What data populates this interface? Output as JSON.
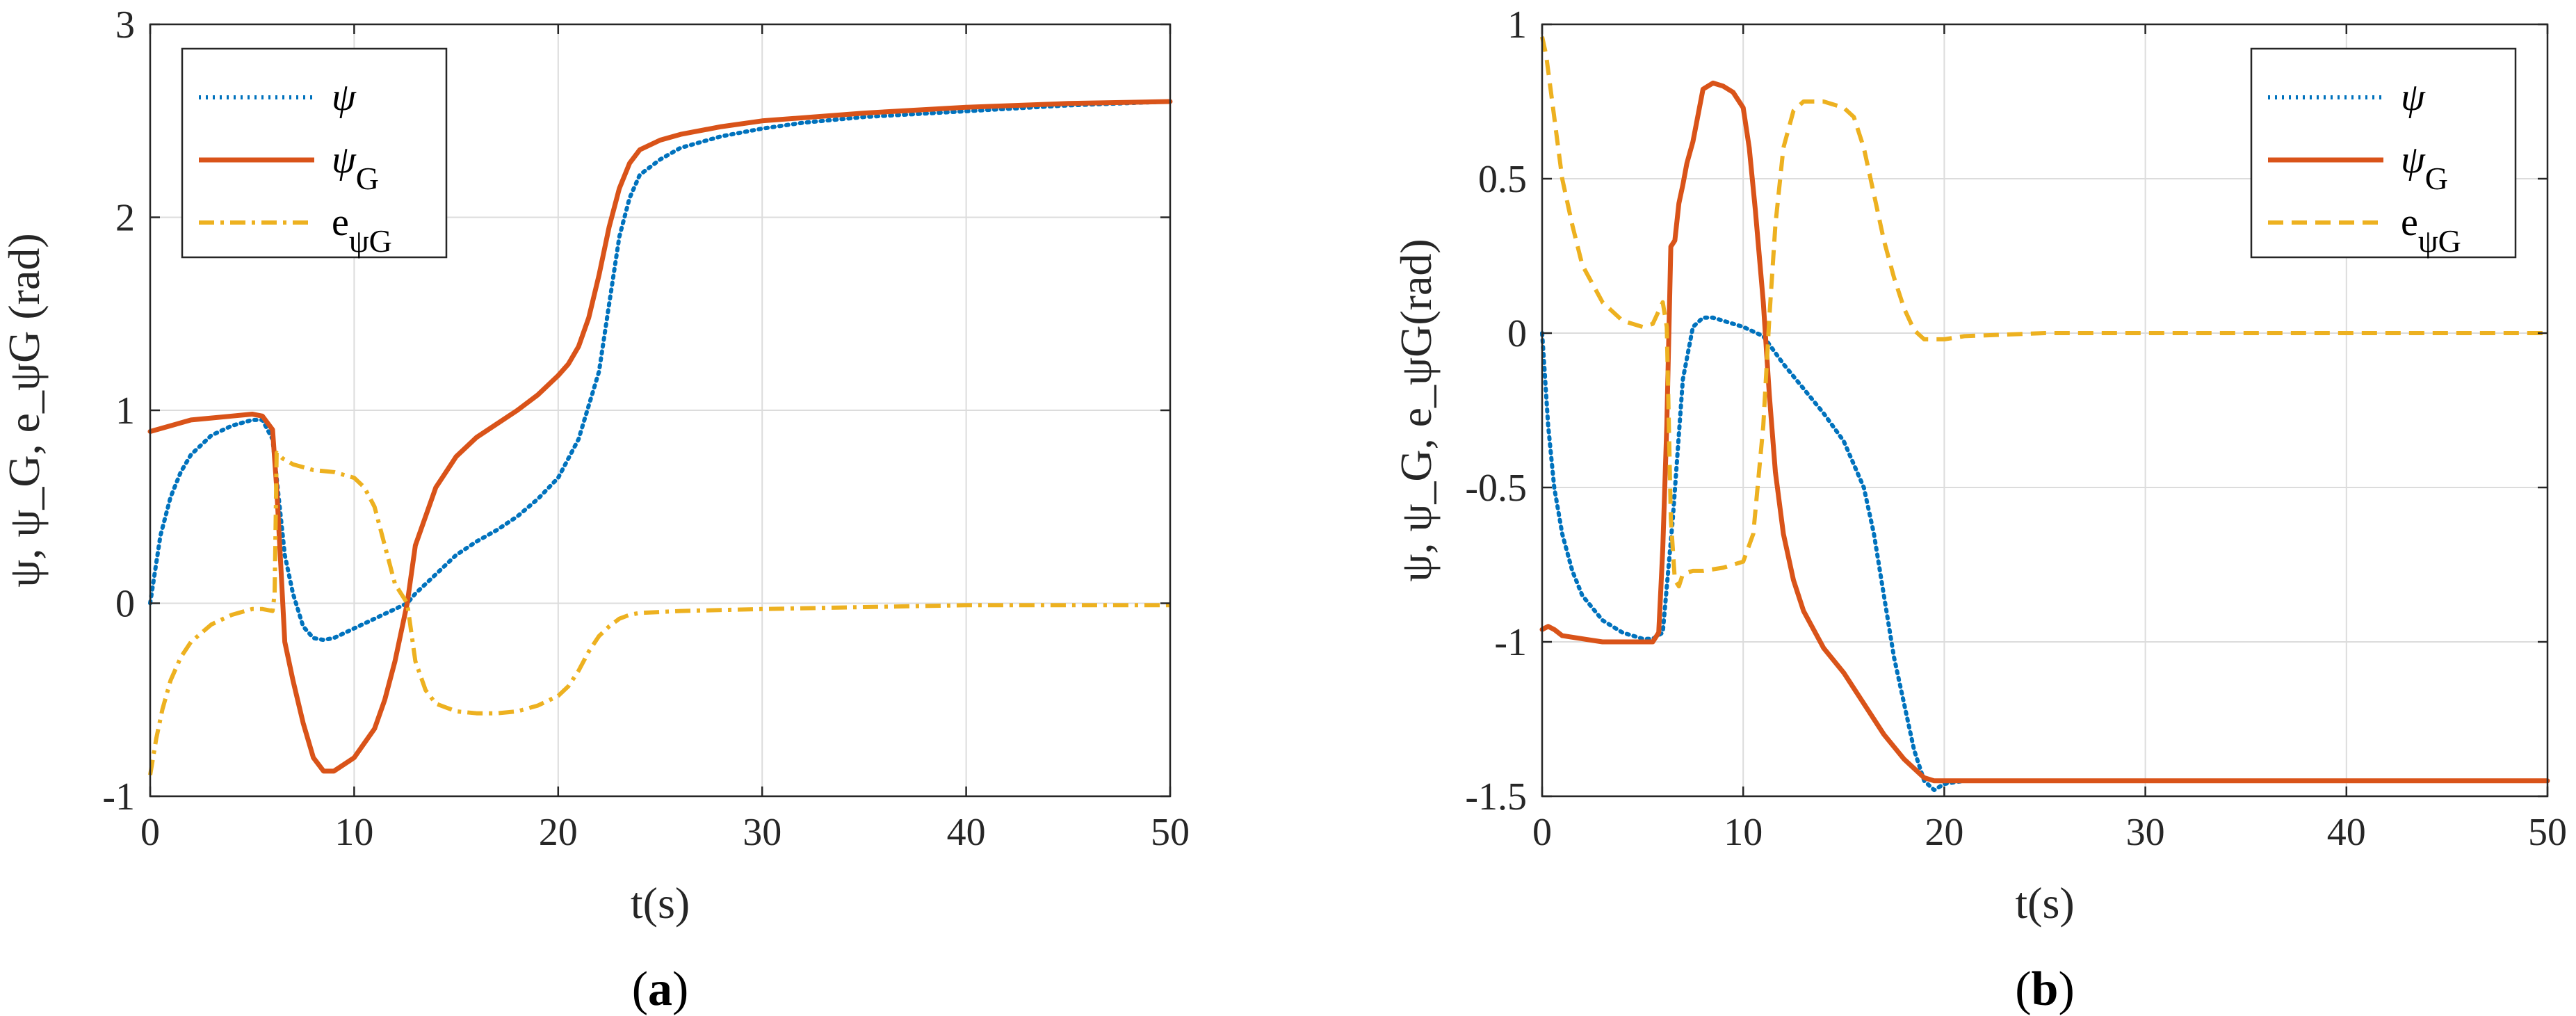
{
  "chart_data": [
    {
      "type": "line",
      "panel_label": "(a)",
      "xlabel": "t(s)",
      "ylabel": "ψ, ψ_G, e_ψG (rad)",
      "xlim": [
        0,
        50
      ],
      "ylim": [
        -1,
        3
      ],
      "xticks": [
        0,
        10,
        20,
        30,
        40,
        50
      ],
      "yticks": [
        -1,
        0,
        1,
        2,
        3
      ],
      "grid": true,
      "legend_position": "top-left",
      "series": [
        {
          "name": "ψ",
          "name_main": "ψ",
          "name_sub": "",
          "style": "dotted",
          "color": "#0072BD",
          "x": [
            0,
            0.5,
            1,
            1.5,
            2,
            3,
            4,
            5,
            5.5,
            6,
            6.3,
            6.6,
            7,
            7.5,
            8,
            8.5,
            9,
            10,
            11,
            12,
            12.6,
            13,
            14,
            15,
            16,
            17,
            18,
            19,
            20,
            21,
            22,
            22.5,
            23,
            23.5,
            24,
            25,
            26,
            28,
            30,
            32,
            35,
            40,
            45,
            50
          ],
          "y": [
            0,
            0.35,
            0.55,
            0.68,
            0.77,
            0.87,
            0.92,
            0.95,
            0.95,
            0.85,
            0.55,
            0.25,
            0.05,
            -0.12,
            -0.18,
            -0.19,
            -0.18,
            -0.13,
            -0.08,
            -0.03,
            0,
            0.05,
            0.15,
            0.25,
            0.32,
            0.38,
            0.45,
            0.54,
            0.65,
            0.85,
            1.2,
            1.55,
            1.9,
            2.1,
            2.22,
            2.3,
            2.36,
            2.42,
            2.46,
            2.49,
            2.52,
            2.55,
            2.58,
            2.6
          ]
        },
        {
          "name": "ψG",
          "name_main": "ψ",
          "name_sub": "G",
          "style": "solid",
          "color": "#D95319",
          "x": [
            0,
            1,
            2,
            3,
            4,
            5,
            5.5,
            6,
            6.2,
            6.4,
            6.6,
            7,
            7.5,
            8,
            8.5,
            9,
            10,
            11,
            11.5,
            12,
            12.6,
            13,
            14,
            15,
            16,
            17,
            18,
            19,
            20,
            20.5,
            21,
            21.5,
            22,
            22.5,
            23,
            23.5,
            24,
            25,
            26,
            28,
            30,
            35,
            40,
            45,
            50
          ],
          "y": [
            0.89,
            0.92,
            0.95,
            0.96,
            0.97,
            0.98,
            0.97,
            0.9,
            0.6,
            0.2,
            -0.2,
            -0.4,
            -0.62,
            -0.8,
            -0.87,
            -0.87,
            -0.8,
            -0.65,
            -0.5,
            -0.3,
            0,
            0.3,
            0.6,
            0.76,
            0.86,
            0.93,
            1.0,
            1.08,
            1.18,
            1.24,
            1.33,
            1.48,
            1.7,
            1.95,
            2.15,
            2.28,
            2.35,
            2.4,
            2.43,
            2.47,
            2.5,
            2.54,
            2.57,
            2.59,
            2.6
          ]
        },
        {
          "name": "eψG",
          "name_main": "e",
          "name_sub": "ψG",
          "style": "dashdot",
          "color": "#EDB120",
          "x": [
            0,
            0.3,
            0.6,
            1,
            1.5,
            2,
            3,
            4,
            5,
            5.5,
            6,
            6.1,
            6.2,
            6.5,
            7,
            8,
            9,
            10,
            10.5,
            11,
            11.5,
            12,
            12.6,
            13,
            13.5,
            14,
            15,
            16,
            17,
            18,
            19,
            20,
            20.5,
            21,
            21.5,
            22,
            22.5,
            23,
            23.5,
            24,
            26,
            30,
            35,
            40,
            45,
            50
          ],
          "y": [
            -0.89,
            -0.7,
            -0.55,
            -0.4,
            -0.28,
            -0.2,
            -0.11,
            -0.06,
            -0.03,
            -0.03,
            -0.04,
            0.05,
            0.78,
            0.75,
            0.72,
            0.69,
            0.68,
            0.65,
            0.6,
            0.5,
            0.3,
            0.1,
            0,
            -0.3,
            -0.45,
            -0.52,
            -0.56,
            -0.57,
            -0.57,
            -0.56,
            -0.53,
            -0.48,
            -0.43,
            -0.35,
            -0.25,
            -0.17,
            -0.12,
            -0.08,
            -0.06,
            -0.05,
            -0.04,
            -0.03,
            -0.02,
            -0.01,
            -0.01,
            -0.01
          ]
        }
      ]
    },
    {
      "type": "line",
      "panel_label": "(b)",
      "xlabel": "t(s)",
      "ylabel": "ψ, ψ_G, e_ψG(rad)",
      "xlim": [
        0,
        50
      ],
      "ylim": [
        -1.5,
        1
      ],
      "xticks": [
        0,
        10,
        20,
        30,
        40,
        50
      ],
      "yticks": [
        -1.5,
        -1,
        -0.5,
        0,
        0.5,
        1
      ],
      "grid": true,
      "legend_position": "top-right",
      "series": [
        {
          "name": "ψ",
          "name_main": "ψ",
          "name_sub": "",
          "style": "dotted",
          "color": "#0072BD",
          "x": [
            0,
            0.3,
            0.6,
            1,
            1.5,
            2,
            3,
            4,
            5,
            5.5,
            6,
            6.5,
            7,
            7.5,
            8,
            8.5,
            9,
            10,
            11,
            12,
            13,
            14,
            15,
            16,
            16.5,
            17,
            17.5,
            18,
            18.5,
            19,
            19.5,
            20,
            21,
            25,
            30,
            40,
            50
          ],
          "y": [
            0,
            -0.3,
            -0.5,
            -0.65,
            -0.77,
            -0.85,
            -0.93,
            -0.97,
            -0.99,
            -0.99,
            -0.97,
            -0.6,
            -0.15,
            0.02,
            0.05,
            0.05,
            0.04,
            0.02,
            -0.01,
            -0.1,
            -0.18,
            -0.26,
            -0.35,
            -0.5,
            -0.65,
            -0.85,
            -1.05,
            -1.2,
            -1.35,
            -1.45,
            -1.48,
            -1.46,
            -1.45,
            -1.45,
            -1.45,
            -1.45,
            -1.45
          ]
        },
        {
          "name": "ψG",
          "name_main": "ψ",
          "name_sub": "G",
          "style": "solid",
          "color": "#D95319",
          "x": [
            0,
            0.3,
            0.6,
            1,
            2,
            3,
            4,
            5,
            5.5,
            5.8,
            6,
            6.2,
            6.4,
            6.6,
            6.8,
            7,
            7.2,
            7.5,
            8,
            8.5,
            9,
            9.5,
            10,
            10.3,
            10.6,
            11,
            11.3,
            11.6,
            12,
            12.5,
            13,
            14,
            15,
            16,
            17,
            18,
            18.5,
            19,
            19.5,
            20,
            21,
            25,
            30,
            40,
            50
          ],
          "y": [
            -0.96,
            -0.95,
            -0.96,
            -0.98,
            -0.99,
            -1.0,
            -1.0,
            -1.0,
            -1.0,
            -0.97,
            -0.7,
            -0.3,
            0.28,
            0.3,
            0.42,
            0.48,
            0.55,
            0.62,
            0.79,
            0.81,
            0.8,
            0.78,
            0.73,
            0.6,
            0.4,
            0.1,
            -0.2,
            -0.45,
            -0.65,
            -0.8,
            -0.9,
            -1.02,
            -1.1,
            -1.2,
            -1.3,
            -1.38,
            -1.41,
            -1.44,
            -1.45,
            -1.45,
            -1.45,
            -1.45,
            -1.45,
            -1.45,
            -1.45
          ]
        },
        {
          "name": "eψG",
          "name_main": "e",
          "name_sub": "ψG",
          "style": "dashed",
          "color": "#EDB120",
          "x": [
            0,
            0.2,
            0.5,
            1,
            1.5,
            2,
            3,
            4,
            5,
            5.5,
            6,
            6.2,
            6.4,
            6.6,
            6.8,
            7,
            7.5,
            8,
            9,
            10,
            10.5,
            11,
            11.3,
            11.6,
            12,
            12.5,
            13,
            14,
            15,
            15.5,
            16,
            16.5,
            17,
            17.5,
            18,
            18.5,
            19,
            19.5,
            20,
            21,
            25,
            30,
            40,
            50
          ],
          "y": [
            0.96,
            0.9,
            0.75,
            0.5,
            0.35,
            0.22,
            0.1,
            0.04,
            0.02,
            0.03,
            0.1,
            0.02,
            -0.6,
            -0.8,
            -0.82,
            -0.78,
            -0.77,
            -0.77,
            -0.76,
            -0.74,
            -0.65,
            -0.3,
            0.05,
            0.35,
            0.6,
            0.72,
            0.75,
            0.75,
            0.73,
            0.7,
            0.6,
            0.45,
            0.3,
            0.18,
            0.08,
            0.01,
            -0.02,
            -0.02,
            -0.02,
            -0.01,
            0,
            0,
            0,
            0
          ]
        }
      ]
    }
  ]
}
